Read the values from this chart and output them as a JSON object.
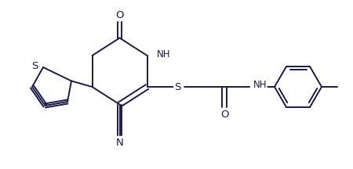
{
  "bg_color": "#ffffff",
  "line_color": "#1a1a4a",
  "line_width": 1.4,
  "font_size": 8.5,
  "figsize": [
    4.5,
    2.16
  ],
  "dpi": 100,
  "xlim": [
    0,
    9.0
  ],
  "ylim": [
    0,
    4.32
  ]
}
